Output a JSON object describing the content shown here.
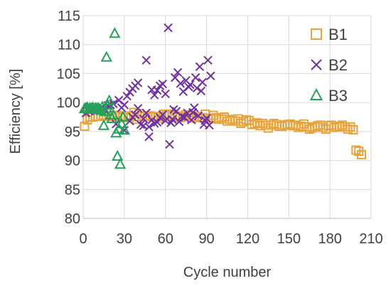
{
  "chart_data": {
    "type": "scatter",
    "title": "",
    "xlabel": "Cycle number",
    "ylabel": "Efficiency [%]",
    "xlim": [
      0,
      210
    ],
    "ylim": [
      80,
      115
    ],
    "x_ticks": [
      "0",
      "30",
      "60",
      "90",
      "120",
      "150",
      "180",
      "210"
    ],
    "y_ticks": [
      "80",
      "85",
      "90",
      "95",
      "100",
      "105",
      "110",
      "115"
    ],
    "grid": "both",
    "legend_position": "top-right",
    "series": [
      {
        "name": "B1",
        "marker": "square",
        "color": "#E8A33C",
        "points": [
          [
            1,
            95.9
          ],
          [
            3,
            97.0
          ],
          [
            5,
            97.5
          ],
          [
            7,
            97.5
          ],
          [
            9,
            97.6
          ],
          [
            11,
            97.6
          ],
          [
            13,
            97.7
          ],
          [
            15,
            97.8
          ],
          [
            17,
            97.7
          ],
          [
            19,
            97.6
          ],
          [
            21,
            97.6
          ],
          [
            23,
            97.7
          ],
          [
            25,
            97.8
          ],
          [
            27,
            97.6
          ],
          [
            29,
            97.4
          ],
          [
            31,
            97.4
          ],
          [
            33,
            97.7
          ],
          [
            35,
            97.6
          ],
          [
            37,
            98.3
          ],
          [
            39,
            97.1
          ],
          [
            41,
            98.1
          ],
          [
            43,
            97.6
          ],
          [
            45,
            97.6
          ],
          [
            47,
            97.7
          ],
          [
            49,
            97.7
          ],
          [
            51,
            97.5
          ],
          [
            53,
            97.6
          ],
          [
            55,
            97.6
          ],
          [
            57,
            97.3
          ],
          [
            59,
            98.0
          ],
          [
            61,
            97.8
          ],
          [
            63,
            97.8
          ],
          [
            65,
            98.0
          ],
          [
            67,
            97.5
          ],
          [
            69,
            97.7
          ],
          [
            71,
            97.4
          ],
          [
            73,
            97.6
          ],
          [
            75,
            97.9
          ],
          [
            77,
            97.7
          ],
          [
            79,
            97.3
          ],
          [
            81,
            97.5
          ],
          [
            83,
            97.6
          ],
          [
            85,
            97.4
          ],
          [
            87,
            97.4
          ],
          [
            89,
            98.0
          ],
          [
            91,
            97.3
          ],
          [
            93,
            97.2
          ],
          [
            95,
            97.8
          ],
          [
            97,
            97.4
          ],
          [
            99,
            97.1
          ],
          [
            101,
            97.2
          ],
          [
            103,
            97.5
          ],
          [
            105,
            96.8
          ],
          [
            107,
            97.1
          ],
          [
            109,
            96.9
          ],
          [
            111,
            96.8
          ],
          [
            113,
            97.2
          ],
          [
            115,
            96.4
          ],
          [
            117,
            96.7
          ],
          [
            119,
            97.0
          ],
          [
            121,
            96.9
          ],
          [
            123,
            96.2
          ],
          [
            125,
            96.3
          ],
          [
            127,
            96.5
          ],
          [
            129,
            96.0
          ],
          [
            131,
            96.4
          ],
          [
            133,
            96.1
          ],
          [
            135,
            95.6
          ],
          [
            137,
            96.1
          ],
          [
            139,
            96.4
          ],
          [
            141,
            96.2
          ],
          [
            143,
            95.9
          ],
          [
            145,
            95.9
          ],
          [
            147,
            96.1
          ],
          [
            149,
            96.2
          ],
          [
            151,
            96.3
          ],
          [
            153,
            96.0
          ],
          [
            155,
            96.1
          ],
          [
            157,
            95.7
          ],
          [
            159,
            95.9
          ],
          [
            161,
            96.3
          ],
          [
            163,
            95.8
          ],
          [
            165,
            95.4
          ],
          [
            167,
            95.6
          ],
          [
            169,
            95.8
          ],
          [
            171,
            96.0
          ],
          [
            173,
            96.1
          ],
          [
            175,
            95.7
          ],
          [
            177,
            95.4
          ],
          [
            179,
            96.0
          ],
          [
            181,
            96.1
          ],
          [
            183,
            95.7
          ],
          [
            185,
            95.8
          ],
          [
            187,
            95.9
          ],
          [
            189,
            96.1
          ],
          [
            191,
            95.8
          ],
          [
            193,
            95.4
          ],
          [
            195,
            95.8
          ],
          [
            197,
            95.3
          ],
          [
            199,
            91.8
          ],
          [
            201,
            91.6
          ],
          [
            203,
            91.0
          ]
        ]
      },
      {
        "name": "B2",
        "marker": "x",
        "color": "#7030A0",
        "points": [
          [
            2,
            98.2
          ],
          [
            4,
            98.5
          ],
          [
            6,
            98.8
          ],
          [
            8,
            98.9
          ],
          [
            10,
            98.6
          ],
          [
            12,
            98.9
          ],
          [
            14,
            99.0
          ],
          [
            16,
            98.6
          ],
          [
            18,
            99.5
          ],
          [
            20,
            99.6
          ],
          [
            22,
            99.8
          ],
          [
            24,
            96.3
          ],
          [
            26,
            100.4
          ],
          [
            28,
            99.1
          ],
          [
            30,
            99.6
          ],
          [
            32,
            101.1
          ],
          [
            34,
            101.8
          ],
          [
            36,
            102.4
          ],
          [
            38,
            102.9
          ],
          [
            40,
            103.4
          ],
          [
            42,
            96.2
          ],
          [
            44,
            96.0
          ],
          [
            46,
            107.3
          ],
          [
            48,
            94.1
          ],
          [
            50,
            102.2
          ],
          [
            52,
            101.3
          ],
          [
            54,
            102.1
          ],
          [
            56,
            102.9
          ],
          [
            58,
            103.2
          ],
          [
            60,
            101.5
          ],
          [
            62,
            112.9
          ],
          [
            63,
            92.8
          ],
          [
            65,
            97.1
          ],
          [
            67,
            104.3
          ],
          [
            69,
            105.2
          ],
          [
            71,
            103.3
          ],
          [
            73,
            101.9
          ],
          [
            75,
            103.8
          ],
          [
            77,
            102.7
          ],
          [
            79,
            97.0
          ],
          [
            81,
            99.1
          ],
          [
            83,
            102.5
          ],
          [
            85,
            106.2
          ],
          [
            87,
            103.5
          ],
          [
            89,
            96.9
          ],
          [
            91,
            107.3
          ],
          [
            93,
            104.6
          ],
          [
            36,
            97.5
          ],
          [
            40,
            99.0
          ],
          [
            44,
            97.2
          ],
          [
            48,
            95.8
          ],
          [
            52,
            96.4
          ],
          [
            56,
            97.4
          ],
          [
            60,
            96.9
          ],
          [
            64,
            96.5
          ],
          [
            68,
            98.5
          ],
          [
            72,
            97.6
          ],
          [
            76,
            98.2
          ],
          [
            80,
            98.3
          ],
          [
            84,
            97.7
          ],
          [
            88,
            96.2
          ],
          [
            92,
            96.1
          ],
          [
            30,
            95.2
          ],
          [
            34,
            96.8
          ],
          [
            38,
            97.9
          ],
          [
            46,
            98.2
          ],
          [
            50,
            97.0
          ],
          [
            54,
            96.6
          ],
          [
            58,
            97.9
          ],
          [
            66,
            98.8
          ],
          [
            70,
            96.7
          ],
          [
            74,
            97.4
          ],
          [
            78,
            103.1
          ],
          [
            82,
            104.3
          ],
          [
            86,
            102.0
          ],
          [
            90,
            97.3
          ]
        ]
      },
      {
        "name": "B3",
        "marker": "triangle",
        "color": "#27A15A",
        "points": [
          [
            1,
            98.9
          ],
          [
            2,
            99.0
          ],
          [
            3,
            99.1
          ],
          [
            4,
            98.8
          ],
          [
            5,
            99.0
          ],
          [
            6,
            98.9
          ],
          [
            7,
            99.1
          ],
          [
            8,
            98.8
          ],
          [
            9,
            99.0
          ],
          [
            10,
            98.9
          ],
          [
            11,
            99.0
          ],
          [
            12,
            98.8
          ],
          [
            13,
            98.6
          ],
          [
            14,
            99.2
          ],
          [
            15,
            96.0
          ],
          [
            16,
            98.4
          ],
          [
            17,
            107.8
          ],
          [
            18,
            99.5
          ],
          [
            19,
            100.3
          ],
          [
            20,
            97.8
          ],
          [
            21,
            97.2
          ],
          [
            22,
            97.8
          ],
          [
            23,
            111.9
          ],
          [
            24,
            94.7
          ],
          [
            25,
            90.7
          ],
          [
            26,
            95.4
          ],
          [
            27,
            89.3
          ],
          [
            28,
            96.3
          ],
          [
            29,
            97.5
          ],
          [
            30,
            95.2
          ]
        ]
      }
    ]
  },
  "legend": {
    "items": [
      {
        "label": "B1",
        "marker": "square",
        "color": "#E8A33C"
      },
      {
        "label": "B2",
        "marker": "x",
        "color": "#7030A0"
      },
      {
        "label": "B3",
        "marker": "triangle",
        "color": "#27A15A"
      }
    ]
  }
}
